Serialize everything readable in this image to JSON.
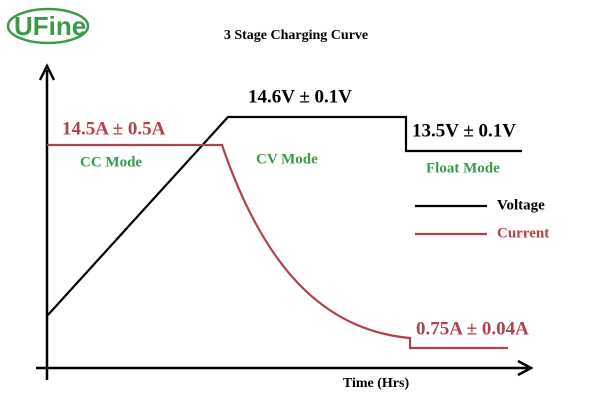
{
  "logo": "UFine",
  "title": "3 Stage Charging Curve",
  "annotations": {
    "cv_voltage": "14.6V ± 0.1V",
    "cc_current": "14.5A ± 0.5A",
    "float_voltage": "13.5V ± 0.1V",
    "float_current": "0.75A ± 0.04A"
  },
  "stages": [
    "CC Mode",
    "CV Mode",
    "Float Mode"
  ],
  "legend": [
    "Voltage",
    "Current"
  ],
  "x_axis_label": "Time (Hrs)"
}
